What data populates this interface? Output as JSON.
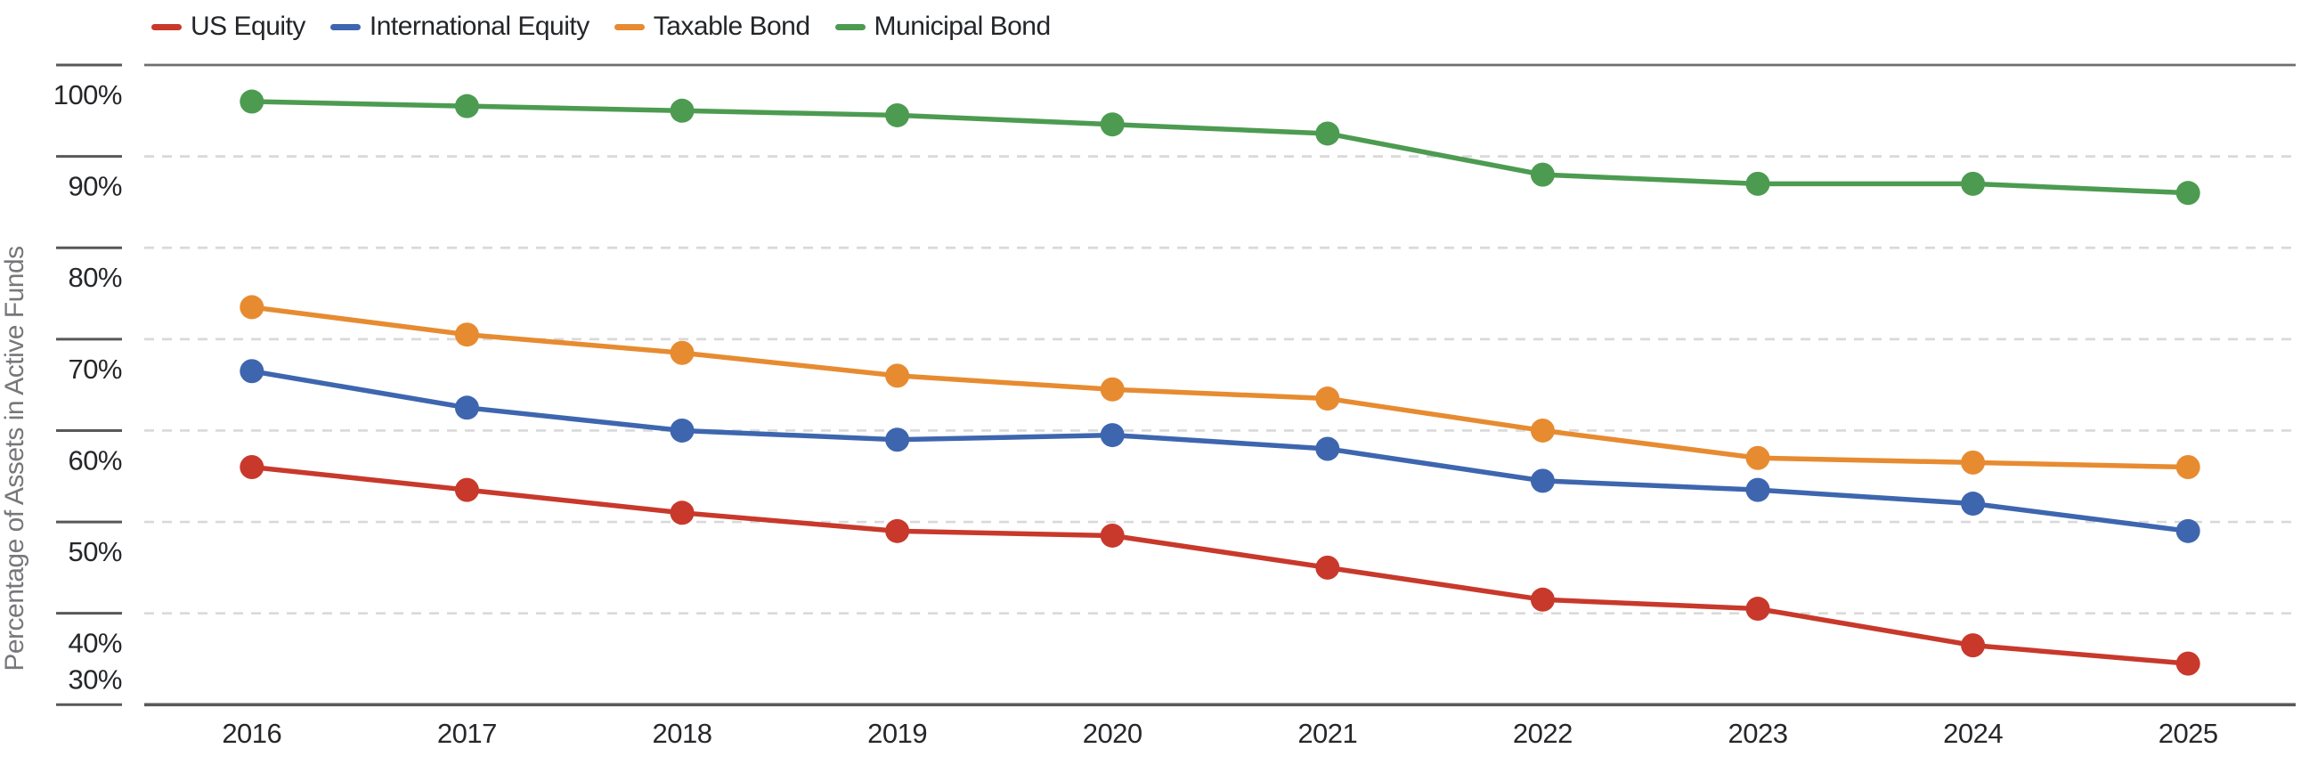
{
  "page": {
    "background": "#ffffff"
  },
  "axis": {
    "y_title": "Percentage of Assets in Active Funds"
  },
  "legend": {
    "position": "top-left",
    "items": [
      {
        "label": "US Equity",
        "color": "#c8392b"
      },
      {
        "label": "International Equity",
        "color": "#3e66af"
      },
      {
        "label": "Taxable Bond",
        "color": "#e78b31"
      },
      {
        "label": "Municipal Bond",
        "color": "#4c9b51"
      }
    ]
  },
  "chart_data": {
    "type": "line",
    "title": "",
    "xlabel": "",
    "ylabel": "Percentage of Assets in Active Funds",
    "categories": [
      "2016",
      "2017",
      "2018",
      "2019",
      "2020",
      "2021",
      "2022",
      "2023",
      "2024",
      "2025"
    ],
    "series": [
      {
        "name": "US Equity",
        "color": "#c8392b",
        "values": [
          56,
          53.5,
          51,
          49,
          48.5,
          45,
          41.5,
          40.5,
          36.5,
          34.5
        ]
      },
      {
        "name": "International Equity",
        "color": "#3e66af",
        "values": [
          66.5,
          62.5,
          60,
          59,
          59.5,
          58,
          54.5,
          53.5,
          52,
          49
        ]
      },
      {
        "name": "Taxable Bond",
        "color": "#e78b31",
        "values": [
          73.5,
          70.5,
          68.5,
          66,
          64.5,
          63.5,
          60,
          57,
          56.5,
          56
        ]
      },
      {
        "name": "Municipal Bond",
        "color": "#4c9b51",
        "values": [
          96,
          95.5,
          95,
          94.5,
          93.5,
          92.5,
          88,
          87,
          87,
          86
        ]
      }
    ],
    "ylim": [
      30,
      100
    ],
    "yticks": [
      100,
      90,
      80,
      70,
      60,
      50,
      40,
      30
    ],
    "ytick_labels": [
      "100%",
      "90%",
      "80%",
      "70%",
      "60%",
      "50%",
      "40%",
      "30%"
    ],
    "grid": "horizontal-dashed",
    "legend_position": "top-left",
    "marker": "circle",
    "colors": {
      "axis_line": "#58585a",
      "top_gridline": "#6d6e70",
      "dashed_gridline": "#d9d9da",
      "tick_text": "#26272a",
      "y_title_text": "#76777a"
    }
  }
}
